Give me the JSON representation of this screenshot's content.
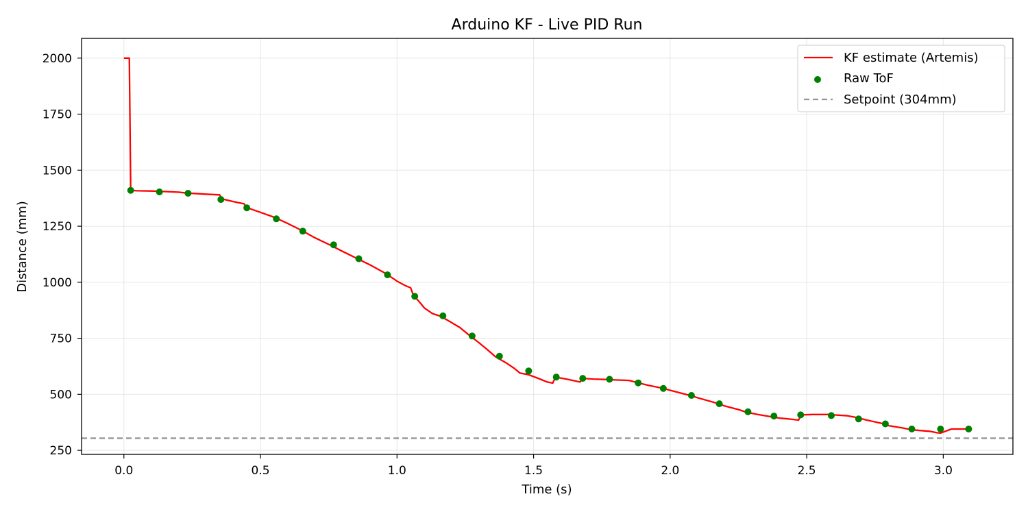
{
  "chart_data": {
    "type": "line",
    "title": "Arduino KF - Live PID Run",
    "xlabel": "Time (s)",
    "ylabel": "Distance (mm)",
    "xlim": [
      -0.155,
      3.255
    ],
    "ylim": [
      232,
      2088
    ],
    "xticks": [
      0.0,
      0.5,
      1.0,
      1.5,
      2.0,
      2.5,
      3.0
    ],
    "xtick_labels": [
      "0.0",
      "0.5",
      "1.0",
      "1.5",
      "2.0",
      "2.5",
      "3.0"
    ],
    "yticks": [
      250,
      500,
      750,
      1000,
      1250,
      1500,
      1750,
      2000
    ],
    "ytick_labels": [
      "250",
      "500",
      "750",
      "1000",
      "1250",
      "1500",
      "1750",
      "2000"
    ],
    "grid": true,
    "legend_position": "top-right",
    "series": [
      {
        "name": "KF estimate (Artemis)",
        "kind": "line",
        "color": "#ff0000",
        "x": [
          0.0,
          0.02,
          0.025,
          0.05,
          0.1,
          0.12,
          0.2,
          0.23,
          0.3,
          0.35,
          0.36,
          0.4,
          0.44,
          0.45,
          0.5,
          0.55,
          0.6,
          0.65,
          0.7,
          0.76,
          0.8,
          0.85,
          0.9,
          0.96,
          1.0,
          1.03,
          1.05,
          1.06,
          1.08,
          1.1,
          1.13,
          1.16,
          1.2,
          1.23,
          1.26,
          1.3,
          1.33,
          1.36,
          1.4,
          1.43,
          1.45,
          1.48,
          1.52,
          1.55,
          1.57,
          1.58,
          1.62,
          1.67,
          1.68,
          1.72,
          1.77,
          1.8,
          1.85,
          1.88,
          1.92,
          1.97,
          2.0,
          2.07,
          2.1,
          2.18,
          2.2,
          2.25,
          2.28,
          2.32,
          2.37,
          2.4,
          2.45,
          2.47,
          2.48,
          2.52,
          2.58,
          2.6,
          2.65,
          2.68,
          2.72,
          2.78,
          2.8,
          2.85,
          2.88,
          2.9,
          2.95,
          2.98,
          2.99,
          3.03,
          3.08,
          3.09
        ],
        "y": [
          2000,
          2000,
          1410,
          1408,
          1407,
          1406,
          1402,
          1398,
          1393,
          1390,
          1372,
          1360,
          1350,
          1333,
          1312,
          1290,
          1262,
          1232,
          1198,
          1163,
          1138,
          1108,
          1078,
          1038,
          1005,
          985,
          975,
          942,
          915,
          885,
          860,
          848,
          820,
          798,
          768,
          730,
          700,
          668,
          640,
          615,
          595,
          588,
          570,
          555,
          550,
          577,
          568,
          555,
          571,
          568,
          566,
          564,
          562,
          552,
          540,
          528,
          518,
          496,
          485,
          457,
          448,
          432,
          420,
          410,
          400,
          394,
          388,
          385,
          408,
          410,
          410,
          408,
          404,
          397,
          385,
          369,
          360,
          350,
          343,
          340,
          335,
          328,
          327,
          345,
          345,
          345
        ]
      },
      {
        "name": "Raw ToF",
        "kind": "scatter",
        "color": "#008000",
        "x": [
          0.025,
          0.13,
          0.235,
          0.355,
          0.45,
          0.558,
          0.655,
          0.768,
          0.86,
          0.965,
          1.065,
          1.168,
          1.275,
          1.375,
          1.482,
          1.583,
          1.68,
          1.778,
          1.883,
          1.975,
          2.078,
          2.18,
          2.285,
          2.38,
          2.478,
          2.59,
          2.69,
          2.788,
          2.885,
          2.99,
          3.093
        ],
        "y": [
          1410,
          1403,
          1397,
          1369,
          1332,
          1283,
          1228,
          1167,
          1105,
          1033,
          937,
          850,
          760,
          670,
          604,
          577,
          571,
          567,
          551,
          526,
          495,
          458,
          422,
          403,
          408,
          405,
          390,
          368,
          345,
          345,
          345
        ]
      },
      {
        "name": "Setpoint (304mm)",
        "kind": "hline",
        "color": "#969696",
        "y": 304
      }
    ]
  }
}
